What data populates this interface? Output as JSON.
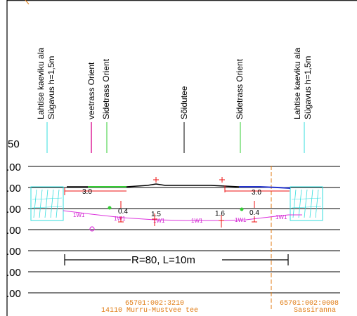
{
  "labels": {
    "left_excavation_1": "Lahtise kaeviku ala",
    "left_excavation_2": "Sügavus h=1,5m",
    "water_pipe": "veetrass Orient",
    "cable_left": "Sidetrass Orient",
    "road": "Sõidutee",
    "cable_right": "Sidetrass Orient",
    "right_excavation_1": "Lahtise kaeviku ala",
    "right_excavation_2": "Sügavus h=1,5m"
  },
  "scale": {
    "top": "50",
    "rows": [
      ".00",
      ".00",
      ".00",
      ".00",
      ".00",
      ".00",
      ".00"
    ]
  },
  "dimensions": {
    "left_width": "3.0",
    "right_width": "3.0",
    "d1": "0.4",
    "d2": "1.5",
    "d3": "1.6",
    "d4": "0.4"
  },
  "pipe_tag": "1W1",
  "curve": "R=80, L=10m",
  "parcels": {
    "left_id": "65701:002:3210",
    "left_name": "14110 Murru-Mustvee tee",
    "right_id": "65701:002:0008",
    "right_name": "Sassiranna"
  },
  "colors": {
    "excavation": "#33dddd",
    "water_pipe": "#dd2299",
    "cable": "#33cc33",
    "road_surface": "#000000",
    "road_edge": "#2233cc",
    "dimension": "#ee1111",
    "pipe": "#dd33dd",
    "parcel_boundary": "#e07a10"
  }
}
